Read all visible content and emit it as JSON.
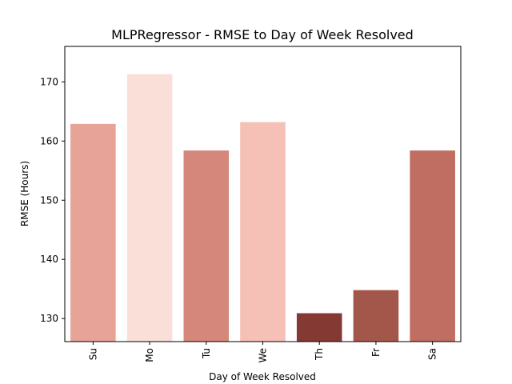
{
  "chart_data": {
    "type": "bar",
    "title": "MLPRegressor - RMSE to Day of Week Resolved",
    "xlabel": "Day of Week Resolved",
    "ylabel": "RMSE (Hours)",
    "categories": [
      "Su",
      "Mo",
      "Tu",
      "We",
      "Th",
      "Fr",
      "Sa"
    ],
    "values": [
      162.9,
      171.3,
      158.4,
      163.2,
      130.9,
      134.8,
      158.4
    ],
    "colors": [
      "#e7a398",
      "#fadfd8",
      "#d4877a",
      "#f5c0b6",
      "#843a33",
      "#a3574a",
      "#bf6e61"
    ],
    "ylim": [
      126.1,
      176.0
    ],
    "yticks": [
      130,
      140,
      150,
      160,
      170
    ],
    "grid": false,
    "legend": "none"
  }
}
